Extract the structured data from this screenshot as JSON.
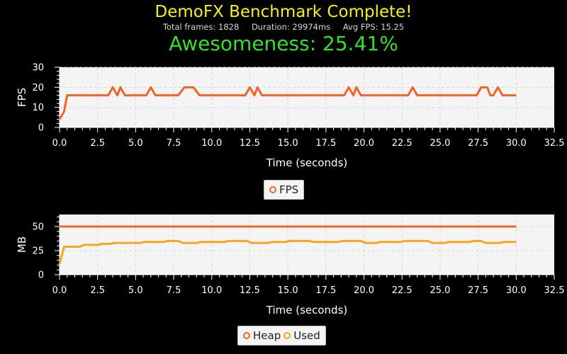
{
  "header": {
    "title": "DemoFX Benchmark Complete!",
    "total_frames": "Total frames: 1828",
    "duration": "Duration: 29974ms",
    "avg_fps": "Avg FPS: 15.25",
    "score": "Awesomeness: 25.41%"
  },
  "colors": {
    "fps": "#f0642a",
    "heap": "#f0642a",
    "used": "#f5a623",
    "plot_bg": "#f4f4f4",
    "grid": "#d9d9d9"
  },
  "chart_data": [
    {
      "type": "line",
      "xlabel": "Time (seconds)",
      "ylabel": "FPS",
      "xlim": [
        0,
        32.5
      ],
      "ylim": [
        0,
        30
      ],
      "xticks": [
        "0.0",
        "2.5",
        "5.0",
        "7.5",
        "10.0",
        "12.5",
        "15.0",
        "17.5",
        "20.0",
        "22.5",
        "25.0",
        "27.5",
        "30.0",
        "32.5"
      ],
      "yticks": [
        "0",
        "10",
        "20",
        "30"
      ],
      "grid": true,
      "legend_position": "bottom",
      "series": [
        {
          "name": "FPS",
          "x": [
            0,
            0.3,
            0.5,
            3.2,
            3.5,
            3.8,
            4.0,
            4.3,
            5.7,
            6.0,
            6.3,
            7.8,
            8.2,
            8.8,
            9.2,
            12.2,
            12.5,
            12.8,
            13.0,
            13.3,
            18.7,
            19.0,
            19.3,
            19.5,
            19.8,
            22.9,
            23.2,
            23.5,
            27.4,
            27.7,
            28.1,
            28.3,
            28.5,
            28.8,
            29.1,
            30.0
          ],
          "values": [
            4,
            8,
            16,
            16,
            20,
            16,
            20,
            16,
            16,
            20,
            16,
            16,
            20,
            20,
            16,
            16,
            20,
            16,
            20,
            16,
            16,
            20,
            16,
            20,
            16,
            16,
            20,
            16,
            16,
            20,
            20,
            16,
            16,
            20,
            16,
            16
          ]
        }
      ]
    },
    {
      "type": "line",
      "xlabel": "Time (seconds)",
      "ylabel": "MB",
      "xlim": [
        0,
        32.5
      ],
      "ylim": [
        0,
        62.5
      ],
      "xticks": [
        "0.0",
        "2.5",
        "5.0",
        "7.5",
        "10.0",
        "12.5",
        "15.0",
        "17.5",
        "20.0",
        "22.5",
        "25.0",
        "27.5",
        "30.0",
        "32.5"
      ],
      "yticks": [
        "0",
        "25",
        "50"
      ],
      "grid": true,
      "legend_position": "bottom",
      "series": [
        {
          "name": "Heap",
          "x": [
            0,
            30
          ],
          "values": [
            50,
            50
          ]
        },
        {
          "name": "Used",
          "x": [
            0,
            0.3,
            1.3,
            1.6,
            2.5,
            2.8,
            3.3,
            3.6,
            5.3,
            5.6,
            6.8,
            7.1,
            7.8,
            8.1,
            9.0,
            9.3,
            10.8,
            11.1,
            12.3,
            12.6,
            13.7,
            14.0,
            14.8,
            15.1,
            16.4,
            16.7,
            18.3,
            18.6,
            19.8,
            20.1,
            20.8,
            21.1,
            22.4,
            22.7,
            24.2,
            24.5,
            25.3,
            25.6,
            26.9,
            27.2,
            27.7,
            28.0,
            28.9,
            29.2,
            30.0
          ],
          "values": [
            11,
            29,
            29,
            31,
            31,
            32,
            32,
            33,
            33,
            34,
            34,
            35,
            35,
            33,
            33,
            34,
            34,
            35,
            35,
            33,
            33,
            34,
            34,
            35,
            35,
            34,
            34,
            35,
            35,
            33,
            33,
            34,
            34,
            35,
            35,
            33,
            33,
            34,
            34,
            35,
            35,
            33,
            33,
            34,
            34
          ]
        }
      ]
    }
  ]
}
